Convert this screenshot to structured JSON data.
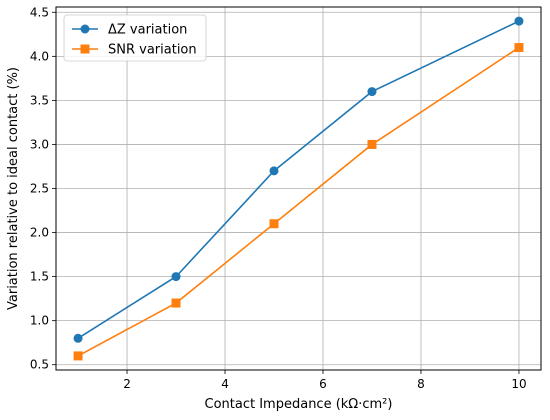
{
  "chart_data": {
    "type": "line",
    "title": "",
    "xlabel": "Contact Impedance (kΩ·cm²)",
    "ylabel": "Variation relative to ideal contact (%)",
    "x": [
      1,
      3,
      5,
      7,
      10
    ],
    "xlim": [
      0.55,
      10.45
    ],
    "ylim": [
      0.44,
      4.56
    ],
    "xticks": [
      2,
      4,
      6,
      8,
      10
    ],
    "yticks": [
      0.5,
      1.0,
      1.5,
      2.0,
      2.5,
      3.0,
      3.5,
      4.0,
      4.5
    ],
    "xtick_labels": [
      "2",
      "4",
      "6",
      "8",
      "10"
    ],
    "ytick_labels": [
      "0.5",
      "1.0",
      "1.5",
      "2.0",
      "2.5",
      "3.0",
      "3.5",
      "4.0",
      "4.5"
    ],
    "grid": true,
    "legend_position": "top-left",
    "series": [
      {
        "name": "ΔZ variation",
        "values": [
          0.8,
          1.5,
          2.7,
          3.6,
          4.4
        ],
        "color": "#1f77b4",
        "marker": "circle"
      },
      {
        "name": "SNR variation",
        "values": [
          0.6,
          1.2,
          2.1,
          3.0,
          4.1
        ],
        "color": "#ff7f0e",
        "marker": "square"
      }
    ]
  }
}
